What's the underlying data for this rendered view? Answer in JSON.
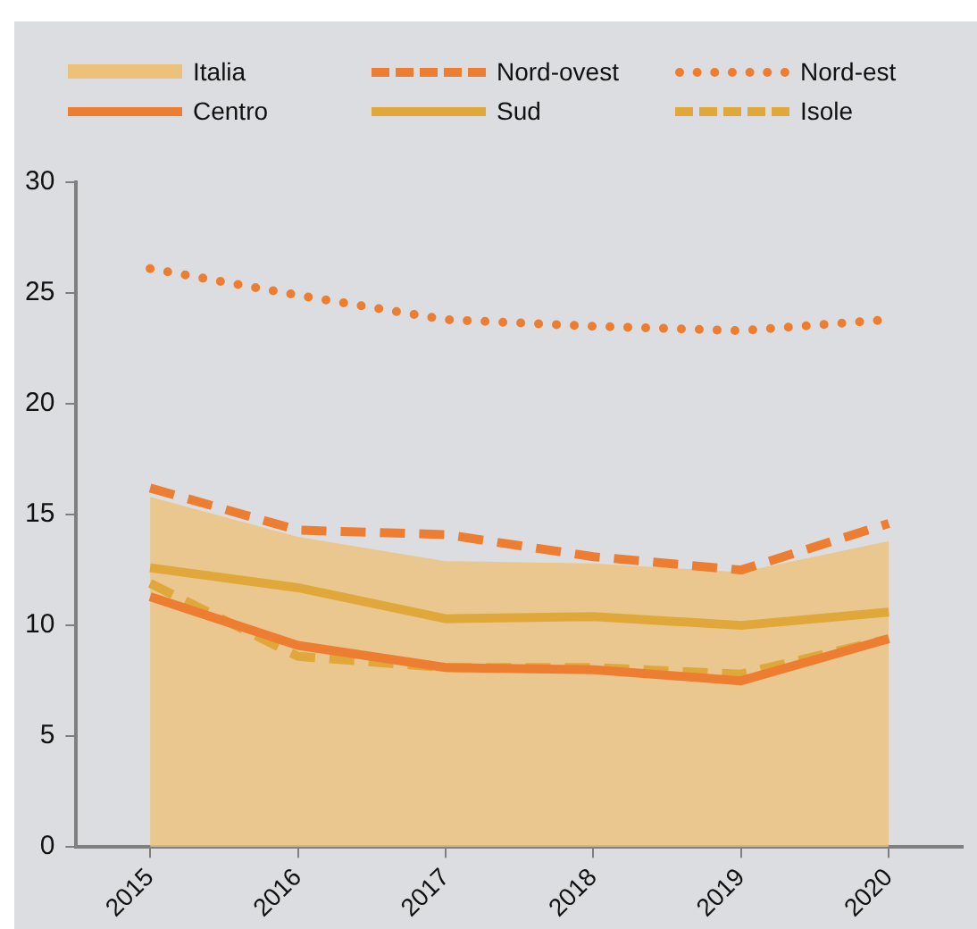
{
  "chart_data": {
    "type": "line",
    "categories": [
      "2015",
      "2016",
      "2017",
      "2018",
      "2019",
      "2020"
    ],
    "series": [
      {
        "name": "Italia",
        "type": "area",
        "color": "#ecc27a",
        "values": [
          15.8,
          14.0,
          12.9,
          12.8,
          12.4,
          13.8
        ]
      },
      {
        "name": "Nord-ovest",
        "color": "#ed7d31",
        "line_style": "dashed",
        "values": [
          16.2,
          14.3,
          14.1,
          13.1,
          12.5,
          14.6
        ]
      },
      {
        "name": "Nord-est",
        "color": "#ed7d31",
        "line_style": "dotted",
        "values": [
          26.1,
          24.9,
          23.8,
          23.5,
          23.3,
          23.8
        ]
      },
      {
        "name": "Centro",
        "color": "#ed7d31",
        "line_style": "solid",
        "values": [
          11.3,
          9.1,
          8.1,
          8.0,
          7.5,
          9.4
        ]
      },
      {
        "name": "Sud",
        "color": "#e0a83a",
        "line_style": "solid",
        "values": [
          12.6,
          11.7,
          10.3,
          10.4,
          10.0,
          10.6
        ]
      },
      {
        "name": "Isole",
        "color": "#e0a83a",
        "line_style": "dashed",
        "values": [
          11.9,
          8.6,
          8.1,
          8.1,
          7.8,
          9.4
        ]
      }
    ],
    "ylim": [
      0,
      30
    ],
    "yticks": [
      0,
      5,
      10,
      15,
      20,
      25,
      30
    ],
    "grid": false,
    "legend": "top",
    "marker": "none"
  }
}
